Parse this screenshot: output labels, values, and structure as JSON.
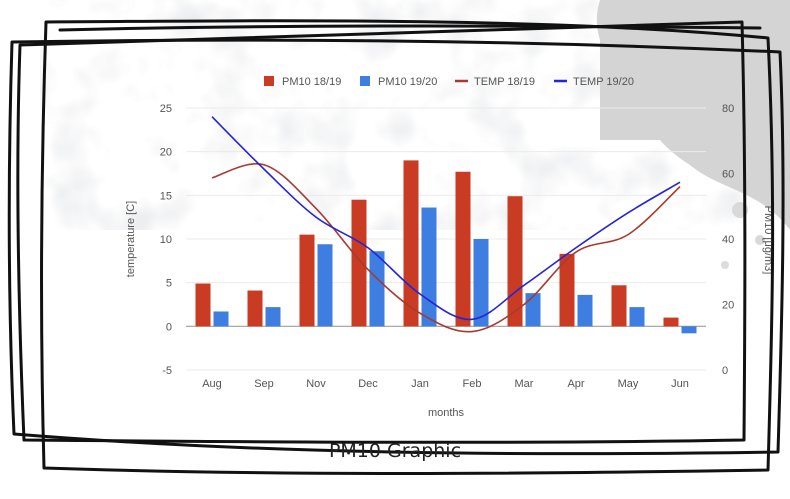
{
  "caption": "PM10 Graphic",
  "colors": {
    "pm10_1819": "#c93b22",
    "pm10_1920": "#3e7ee0",
    "temp_1819": "#a83a30",
    "temp_1920": "#2424d8",
    "gridline": "#ebebeb",
    "zeroline": "#9e9e9e",
    "text": "#555555",
    "sketch": "#111111"
  },
  "chart_data": {
    "type": "bar",
    "xlabel": "months",
    "ylabel": "temperature [C]",
    "y2label": "PM10 [μg/m3]",
    "ylim": [
      -5,
      25
    ],
    "y2lim": [
      0,
      80
    ],
    "yticks": [
      "25",
      "20",
      "15",
      "10",
      "5",
      "0",
      "-5"
    ],
    "y2ticks": [
      "80",
      "60",
      "40",
      "20",
      "0"
    ],
    "grid": true,
    "legend_position": "top",
    "categories": [
      "Aug",
      "Sep",
      "Nov",
      "Dec",
      "Jan",
      "Feb",
      "Mar",
      "Apr",
      "May",
      "Jun"
    ],
    "series": [
      {
        "name": "PM10 18/19",
        "type": "bar",
        "axis": "left",
        "values": [
          4.9,
          4.1,
          10.5,
          14.5,
          19.0,
          17.7,
          14.9,
          8.3,
          4.7,
          1.0
        ]
      },
      {
        "name": "PM10 19/20",
        "type": "bar",
        "axis": "left",
        "values": [
          1.7,
          2.2,
          9.4,
          8.6,
          13.6,
          10.0,
          3.8,
          3.6,
          2.2,
          -0.8
        ]
      },
      {
        "name": "TEMP 18/19",
        "type": "line",
        "axis": "left",
        "values": [
          17.0,
          18.5,
          13.5,
          6.5,
          1.5,
          -0.6,
          2.5,
          8.5,
          10.5,
          16.0
        ]
      },
      {
        "name": "TEMP 19/20",
        "type": "line",
        "axis": "left",
        "values": [
          24.0,
          18.0,
          12.5,
          9.0,
          3.7,
          0.8,
          4.7,
          9.0,
          13.0,
          16.5
        ]
      }
    ]
  }
}
